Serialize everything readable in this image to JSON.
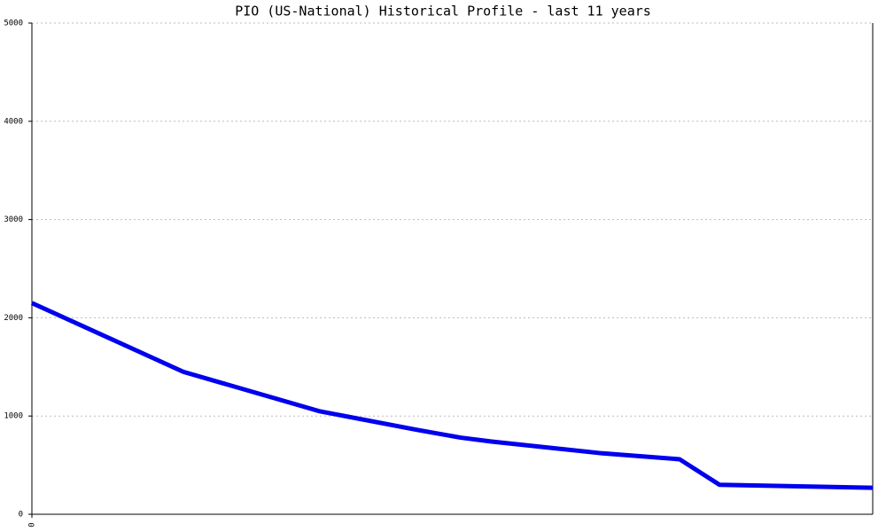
{
  "chart_data": {
    "type": "line",
    "title": "PIO (US-National) Historical Profile - last 11 years",
    "x": [
      0,
      724,
      1372,
      1838,
      2049,
      2197,
      2727,
      3095,
      3286,
      3531,
      4018
    ],
    "series": [
      {
        "color": "#0000ee",
        "values": [
          2150,
          1450,
          1050,
          860,
          780,
          740,
          620,
          560,
          300,
          290,
          270
        ]
      }
    ],
    "xlim": [
      0,
      4018
    ],
    "xticks": [
      0
    ],
    "ylim": [
      0,
      5000
    ],
    "yticks": [
      0,
      1000,
      2000,
      3000,
      4000,
      5000
    ],
    "grid": true
  }
}
